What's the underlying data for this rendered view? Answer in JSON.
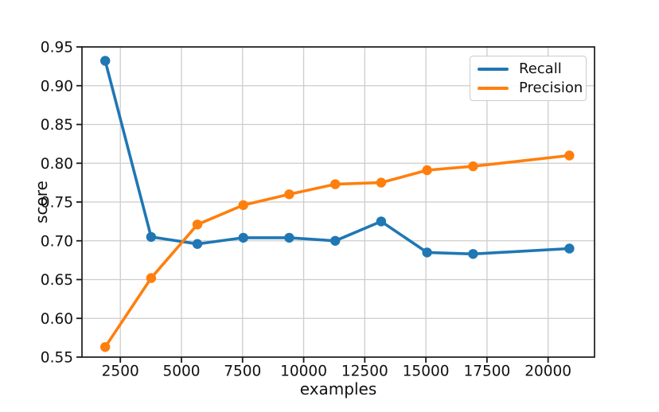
{
  "figure": {
    "background": "#ffffff",
    "grid_color": "#cccccc",
    "spine_color": "#1a1a1a",
    "text_color": "#111111"
  },
  "chart_data": {
    "type": "line",
    "title": "",
    "xlabel": "examples",
    "ylabel": "score",
    "grid": true,
    "legend_position": "upper right",
    "xlim": [
      930,
      21900
    ],
    "ylim": [
      0.55,
      0.95
    ],
    "x_ticks": [
      {
        "value": 2500,
        "label": "2500"
      },
      {
        "value": 5000,
        "label": "5000"
      },
      {
        "value": 7500,
        "label": "7500"
      },
      {
        "value": 10000,
        "label": "10000"
      },
      {
        "value": 12500,
        "label": "12500"
      },
      {
        "value": 15000,
        "label": "15000"
      },
      {
        "value": 17500,
        "label": "17500"
      },
      {
        "value": 20000,
        "label": "20000"
      }
    ],
    "y_ticks": [
      {
        "value": 0.55,
        "label": "0.55"
      },
      {
        "value": 0.6,
        "label": "0.60"
      },
      {
        "value": 0.65,
        "label": "0.65"
      },
      {
        "value": 0.7,
        "label": "0.70"
      },
      {
        "value": 0.75,
        "label": "0.75"
      },
      {
        "value": 0.8,
        "label": "0.80"
      },
      {
        "value": 0.85,
        "label": "0.85"
      },
      {
        "value": 0.9,
        "label": "0.90"
      },
      {
        "value": 0.95,
        "label": "0.95"
      }
    ],
    "x": [
      1880,
      3760,
      5650,
      7530,
      9410,
      11290,
      13170,
      15050,
      16930,
      20870
    ],
    "series": [
      {
        "name": "Recall",
        "color": "#1f77b4",
        "marker": "circle",
        "values": [
          0.932,
          0.705,
          0.696,
          0.704,
          0.704,
          0.7,
          0.725,
          0.685,
          0.683,
          0.69
        ]
      },
      {
        "name": "Precision",
        "color": "#ff7f0e",
        "marker": "circle",
        "values": [
          0.563,
          0.652,
          0.721,
          0.746,
          0.76,
          0.773,
          0.775,
          0.791,
          0.796,
          0.81
        ]
      }
    ]
  }
}
